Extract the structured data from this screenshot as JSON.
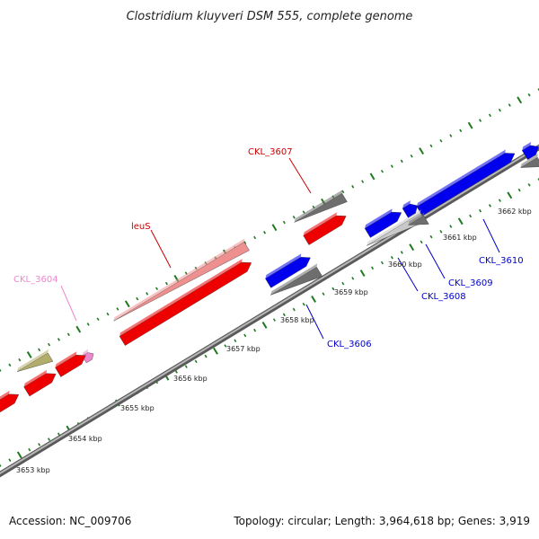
{
  "title": "Clostridium kluyveri DSM 555, complete genome",
  "footer": {
    "accession": "Accession: NC_009706",
    "summary": "Topology: circular; Length: 3,964,618 bp; Genes: 3,919"
  },
  "colors": {
    "backbone": "#8a8a8a",
    "tick": "#1f7a1f",
    "label_red": "#cc0000",
    "label_blue": "#0000cc",
    "label_pink": "#ee88cc"
  },
  "ruler_labels": [
    {
      "kbp": 3653,
      "label": "3653 kbp"
    },
    {
      "kbp": 3654,
      "label": "3654 kbp"
    },
    {
      "kbp": 3655,
      "label": "3655 kbp"
    },
    {
      "kbp": 3656,
      "label": "3656 kbp"
    },
    {
      "kbp": 3657,
      "label": "3657 kbp"
    },
    {
      "kbp": 3658,
      "label": "3658 kbp"
    },
    {
      "kbp": 3659,
      "label": "3659 kbp"
    },
    {
      "kbp": 3660,
      "label": "3660 kbp"
    },
    {
      "kbp": 3661,
      "label": "3661 kbp"
    },
    {
      "kbp": 3662,
      "label": "3662 kbp"
    }
  ],
  "gene_labels": [
    {
      "name": "CKL_3604",
      "color": "#ee88cc"
    },
    {
      "name": "leuS",
      "color": "#cc0000"
    },
    {
      "name": "CKL_3607",
      "color": "#cc0000"
    },
    {
      "name": "CKL_3606",
      "color": "#0000cc"
    },
    {
      "name": "CKL_3608",
      "color": "#0000cc"
    },
    {
      "name": "CKL_3609",
      "color": "#0000cc"
    },
    {
      "name": "CKL_3610",
      "color": "#0000cc"
    }
  ],
  "features": [
    {
      "track": "forward",
      "color": "#b3ad6b",
      "kind": "gene"
    },
    {
      "track": "forward",
      "color": "#ee88cc",
      "kind": "gene"
    },
    {
      "track": "forward",
      "color": "#ee9090",
      "kind": "gene"
    },
    {
      "track": "forward",
      "color": "#6e6e6e",
      "kind": "gene"
    },
    {
      "track": "forward",
      "color": "#0000ee",
      "kind": "gene"
    },
    {
      "track": "forward",
      "color": "#6e6e6e",
      "kind": "gene"
    },
    {
      "track": "forward",
      "color": "#ee0000",
      "kind": "cds"
    },
    {
      "track": "forward",
      "color": "#0000ee",
      "kind": "cds"
    },
    {
      "track": "reverse",
      "color": "#ee0000",
      "kind": "cds"
    },
    {
      "track": "reverse",
      "color": "#6e6e6e",
      "kind": "gene"
    },
    {
      "track": "reverse",
      "color": "#c8c8c8",
      "kind": "gene"
    }
  ]
}
